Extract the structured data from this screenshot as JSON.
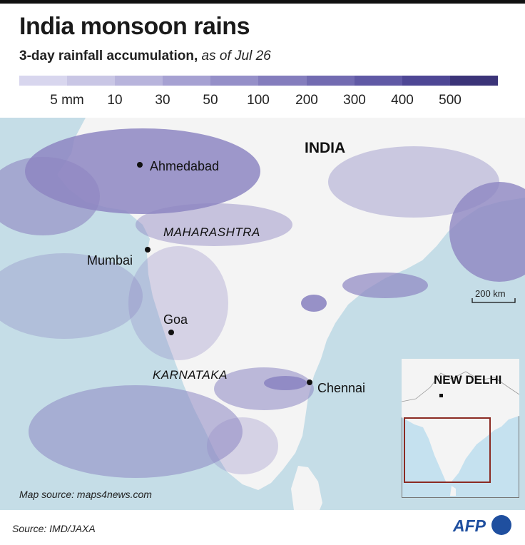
{
  "title": "India monsoon rains",
  "subtitle": {
    "main": "3-day rainfall accumulation,",
    "date": "as of Jul 26"
  },
  "legend": {
    "colors": [
      "#d8d6ee",
      "#c9c6e5",
      "#b8b4dc",
      "#a6a1d2",
      "#958fc8",
      "#847dbd",
      "#726bb1",
      "#6059a5",
      "#4e4795",
      "#3b3478"
    ],
    "ticks": [
      "5 mm",
      "10",
      "30",
      "50",
      "100",
      "200",
      "300",
      "400",
      "500"
    ]
  },
  "map": {
    "country_label": "INDIA",
    "cities": [
      {
        "name": "Ahmedabad"
      },
      {
        "name": "Mumbai"
      },
      {
        "name": "Goa"
      },
      {
        "name": "Chennai"
      }
    ],
    "states": [
      "MAHARASHTRA",
      "KARNATAKA"
    ],
    "scale_label": "200 km",
    "inset_label": "NEW DELHI",
    "colors": {
      "sea": "#c5dde7",
      "land": "#f4f4f4",
      "rain": "#8d86c2"
    }
  },
  "map_source": "Map source: maps4news.com",
  "source": "Source: IMD/JAXA",
  "logo": "AFP"
}
